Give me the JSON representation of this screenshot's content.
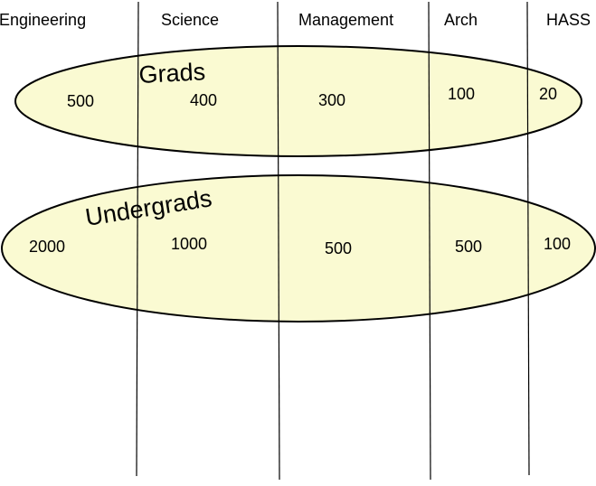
{
  "columns": [
    {
      "name": "Engineering"
    },
    {
      "name": "Science"
    },
    {
      "name": "Management"
    },
    {
      "name": "Arch"
    },
    {
      "name": "HASS"
    }
  ],
  "groups": {
    "grads": {
      "label": "Grads",
      "counts": [
        "500",
        "400",
        "300",
        "100",
        "20"
      ],
      "fill": "#fafad2"
    },
    "undergrads": {
      "label": "Undergrads",
      "counts": [
        "2000",
        "1000",
        "500",
        "500",
        "100"
      ],
      "fill": "#fafad2"
    }
  },
  "colors": {
    "outline": "#000000",
    "line": "#000000",
    "ellipse_fill": "#fafad2"
  }
}
